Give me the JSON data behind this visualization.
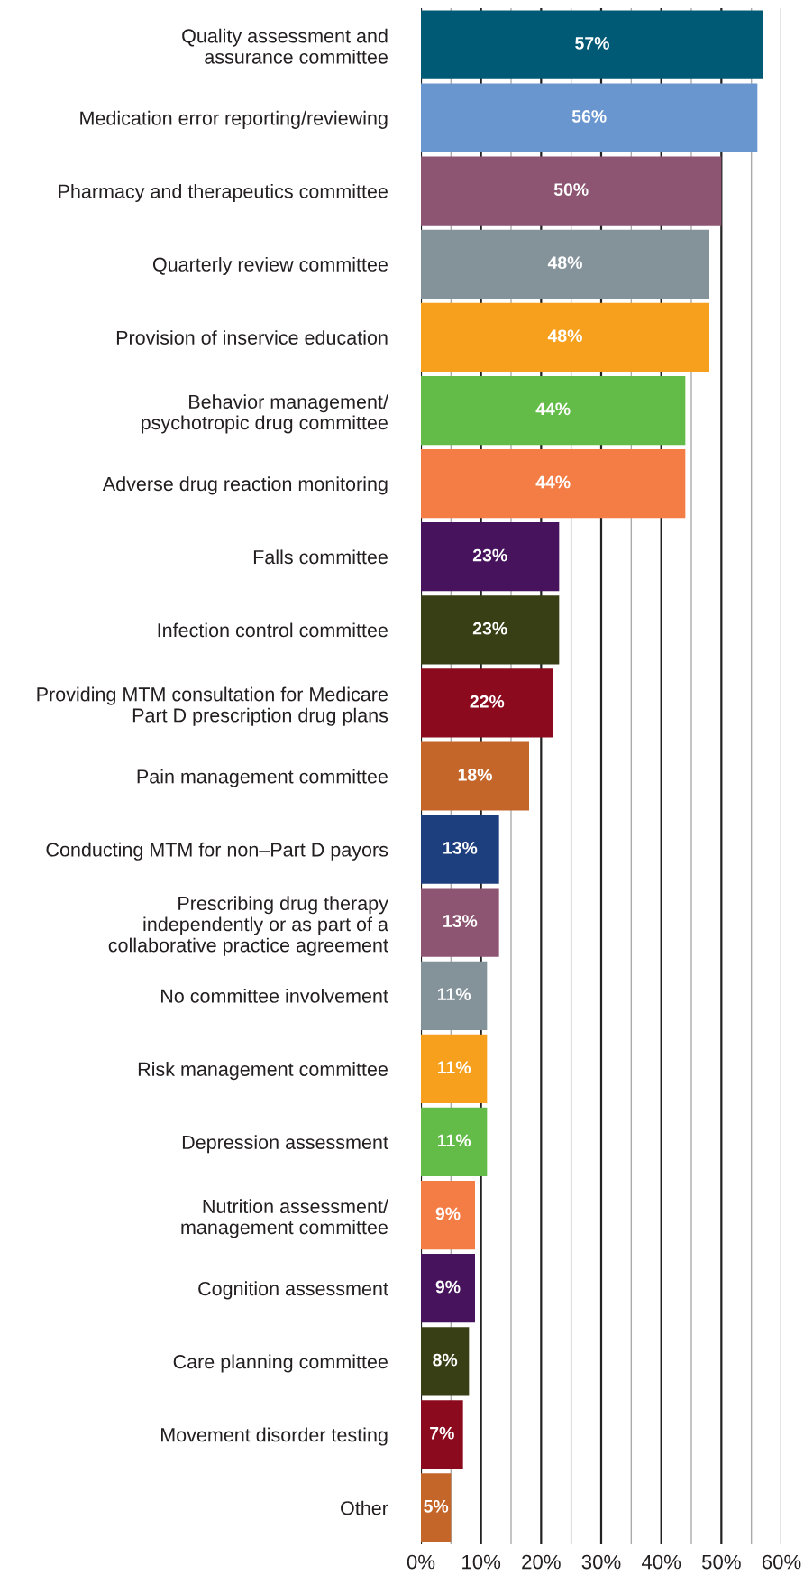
{
  "chart_data": {
    "type": "bar",
    "orientation": "horizontal",
    "data_labels": true,
    "grid": "x",
    "categories": [
      "Quality assessment and\nassurance committee",
      "Medication error reporting/reviewing",
      "Pharmacy and therapeutics committee",
      "Quarterly review committee",
      "Provision of inservice education",
      "Behavior management/\npsychotropic drug committee",
      "Adverse drug reaction monitoring",
      "Falls committee",
      "Infection control committee",
      "Providing MTM consultation for Medicare\nPart D prescription drug plans",
      "Pain management committee",
      "Conducting MTM for non–Part D payors",
      "Prescribing drug therapy\nindependently or as part of a\ncollaborative practice agreement",
      "No committee involvement",
      "Risk management committee",
      "Depression assessment",
      "Nutrition assessment/\nmanagement committee",
      "Cognition assessment",
      "Care planning committee",
      "Movement disorder testing",
      "Other"
    ],
    "values": [
      57,
      56,
      50,
      48,
      48,
      44,
      44,
      23,
      23,
      22,
      18,
      13,
      13,
      11,
      11,
      11,
      9,
      9,
      8,
      7,
      5
    ],
    "value_labels": [
      "57%",
      "56%",
      "50%",
      "48%",
      "48%",
      "44%",
      "44%",
      "23%",
      "23%",
      "22%",
      "18%",
      "13%",
      "13%",
      "11%",
      "11%",
      "11%",
      "9%",
      "9%",
      "8%",
      "7%",
      "5%"
    ],
    "colors": [
      "#005a75",
      "#6a96cf",
      "#8e5572",
      "#84929a",
      "#f6a01e",
      "#62bc47",
      "#f47c45",
      "#47135c",
      "#393f15",
      "#8b0a1e",
      "#c4662a",
      "#1e3f7e",
      "#8e5572",
      "#84929a",
      "#f6a01e",
      "#62bc47",
      "#f47c45",
      "#47135c",
      "#393f15",
      "#8b0a1e",
      "#c4662a"
    ],
    "xlim": [
      0,
      60
    ],
    "xticks": [
      {
        "value": 0,
        "label": "0%"
      },
      {
        "value": 5,
        "label": null
      },
      {
        "value": 10,
        "label": "10%"
      },
      {
        "value": 15,
        "label": null
      },
      {
        "value": 20,
        "label": "20%"
      },
      {
        "value": 25,
        "label": null
      },
      {
        "value": 30,
        "label": "30%"
      },
      {
        "value": 35,
        "label": null
      },
      {
        "value": 40,
        "label": "40%"
      },
      {
        "value": 45,
        "label": null
      },
      {
        "value": 50,
        "label": "50%"
      },
      {
        "value": 55,
        "label": null
      },
      {
        "value": 60,
        "label": "60%"
      }
    ]
  }
}
